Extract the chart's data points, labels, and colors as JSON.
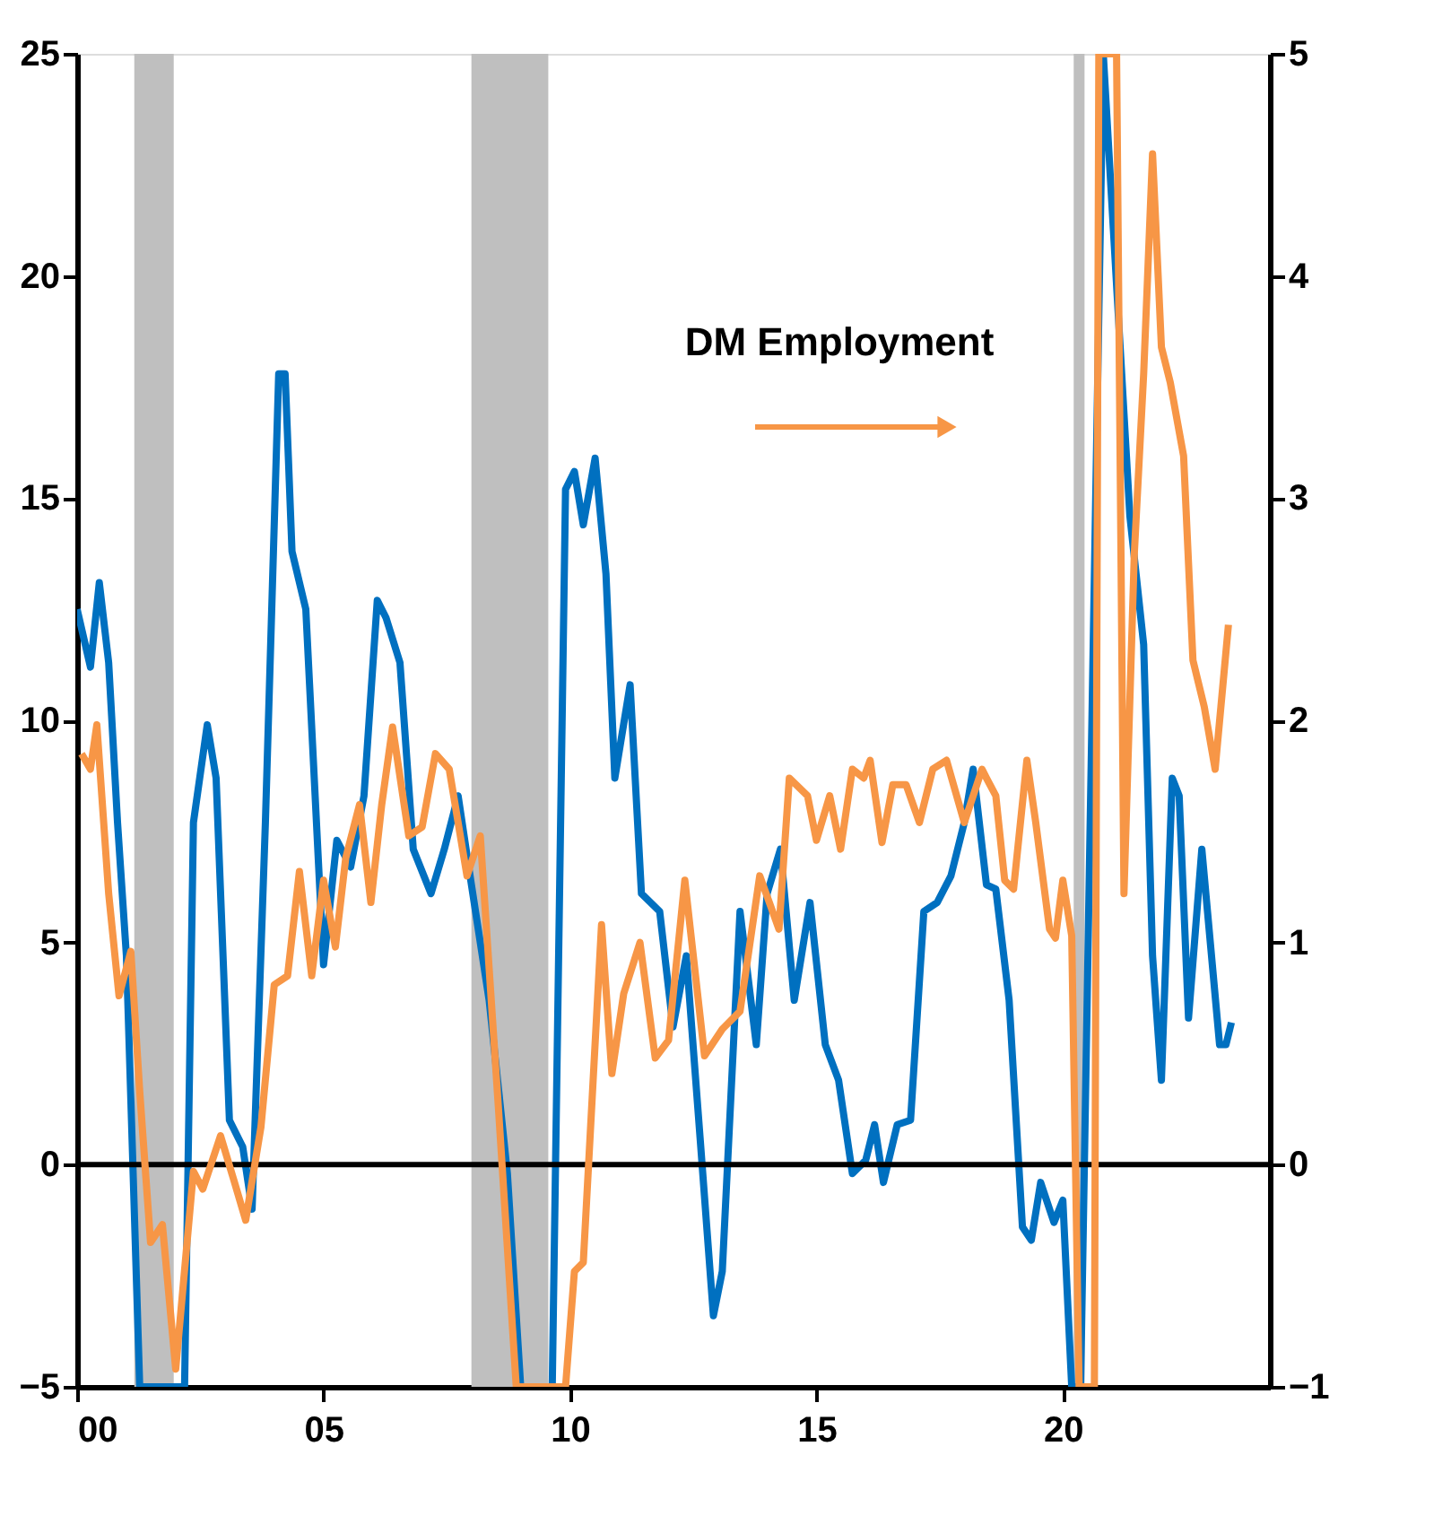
{
  "chart_data": {
    "type": "line",
    "xlim": [
      0,
      24.2
    ],
    "xticks": [
      {
        "value": 0,
        "label": "00"
      },
      {
        "value": 5,
        "label": "05"
      },
      {
        "value": 10,
        "label": "10"
      },
      {
        "value": 15,
        "label": "15"
      },
      {
        "value": 20,
        "label": "20"
      }
    ],
    "ylim": [
      -5,
      25
    ],
    "yticks": [
      -5,
      0,
      5,
      10,
      15,
      20,
      25
    ],
    "y2lim": [
      -1,
      5
    ],
    "y2ticks": [
      -1,
      0,
      1,
      2,
      3,
      4,
      5
    ],
    "grid": false,
    "legend": false,
    "marker": "none",
    "line_style": "solid",
    "ref_lines": [
      {
        "axis": "y",
        "value": 0,
        "color": "#000000"
      }
    ],
    "bands": [
      {
        "axis": "x",
        "from": 1.16,
        "to": 1.96,
        "color": "#bfbfbf"
      },
      {
        "axis": "x",
        "from": 8.0,
        "to": 9.56,
        "color": "#bfbfbf"
      },
      {
        "axis": "x",
        "from": 20.22,
        "to": 20.44,
        "color": "#bfbfbf"
      }
    ],
    "series": [
      {
        "color": "#0070c0",
        "x": [
          0.0,
          0.27,
          0.45,
          0.64,
          0.82,
          1.0,
          1.27,
          2.18,
          2.36,
          2.64,
          2.82,
          3.09,
          3.36,
          3.55,
          3.82,
          4.09,
          4.22,
          4.36,
          4.64,
          5.0,
          5.27,
          5.55,
          5.82,
          6.09,
          6.27,
          6.55,
          6.82,
          7.18,
          7.45,
          7.73,
          8.0,
          8.36,
          8.73,
          9.0,
          9.64,
          9.91,
          10.09,
          10.27,
          10.51,
          10.73,
          10.91,
          11.22,
          11.45,
          11.82,
          12.09,
          12.36,
          12.64,
          12.91,
          13.09,
          13.45,
          13.78,
          14.0,
          14.27,
          14.55,
          14.87,
          15.18,
          15.45,
          15.73,
          16.0,
          16.18,
          16.36,
          16.64,
          16.91,
          17.18,
          17.45,
          17.73,
          18.0,
          18.18,
          18.45,
          18.64,
          18.91,
          19.18,
          19.36,
          19.55,
          19.82,
          20.0,
          20.18,
          20.36,
          20.82,
          21.36,
          21.64,
          21.82,
          22.0,
          22.22,
          22.36,
          22.55,
          22.82,
          23.0,
          23.18,
          23.31,
          23.42
        ],
        "values": [
          12.5,
          11.2,
          13.1,
          11.3,
          7.7,
          4.7,
          -5,
          -5,
          7.7,
          9.9,
          8.7,
          1.0,
          0.4,
          -1.0,
          7.7,
          17.8,
          17.8,
          13.8,
          12.5,
          4.5,
          7.3,
          6.7,
          8.3,
          12.7,
          12.3,
          11.3,
          7.1,
          6.1,
          7.1,
          8.3,
          6.3,
          3.7,
          -0.2,
          -5,
          -5,
          15.2,
          15.6,
          14.4,
          15.9,
          13.3,
          8.7,
          10.8,
          6.1,
          5.7,
          3.1,
          4.7,
          0.6,
          -3.4,
          -2.4,
          5.7,
          2.7,
          6.1,
          7.1,
          3.7,
          5.9,
          2.7,
          1.9,
          -0.2,
          0.1,
          0.9,
          -0.4,
          0.9,
          1.0,
          5.7,
          5.9,
          6.5,
          7.7,
          8.9,
          6.3,
          6.2,
          3.7,
          -1.4,
          -1.7,
          -0.4,
          -1.3,
          -0.8,
          -5,
          -5,
          25,
          14.6,
          11.7,
          4.7,
          1.9,
          8.7,
          8.3,
          3.3,
          7.1,
          4.9,
          2.7,
          2.7,
          3.2
        ]
      },
      {
        "name": "DM Employment",
        "color": "#f79646",
        "axis": "y2",
        "x": [
          0.09,
          0.27,
          0.4,
          0.64,
          0.85,
          1.09,
          1.27,
          1.49,
          1.73,
          2.0,
          2.36,
          2.55,
          2.91,
          3.18,
          3.42,
          3.73,
          4.0,
          4.27,
          4.51,
          4.76,
          5.0,
          5.24,
          5.45,
          5.73,
          5.96,
          6.18,
          6.4,
          6.73,
          7.0,
          7.27,
          7.55,
          7.91,
          8.18,
          8.55,
          8.91,
          9.91,
          10.09,
          10.27,
          10.64,
          10.85,
          11.09,
          11.42,
          11.73,
          12.0,
          12.33,
          12.73,
          13.09,
          13.45,
          13.85,
          14.24,
          14.45,
          14.82,
          15.0,
          15.27,
          15.49,
          15.73,
          15.96,
          16.09,
          16.33,
          16.55,
          16.82,
          17.09,
          17.36,
          17.64,
          18.0,
          18.36,
          18.45,
          18.64,
          18.82,
          19.0,
          19.27,
          19.45,
          19.73,
          19.85,
          20.0,
          20.18,
          20.33,
          20.64,
          20.73,
          21.09,
          21.24,
          21.45,
          21.64,
          21.82,
          22.0,
          22.18,
          22.45,
          22.64,
          22.87,
          23.09,
          23.36
        ],
        "values": [
          1.85,
          1.78,
          1.98,
          1.22,
          0.76,
          0.96,
          0.33,
          -0.35,
          -0.27,
          -0.92,
          -0.03,
          -0.11,
          0.13,
          -0.07,
          -0.25,
          0.17,
          0.81,
          0.85,
          1.32,
          0.85,
          1.28,
          0.98,
          1.38,
          1.62,
          1.18,
          1.62,
          1.97,
          1.48,
          1.52,
          1.85,
          1.78,
          1.3,
          1.48,
          0.25,
          -1,
          -1,
          -0.48,
          -0.44,
          1.08,
          0.41,
          0.77,
          1.0,
          0.48,
          0.56,
          1.28,
          0.49,
          0.61,
          0.69,
          1.3,
          1.06,
          1.74,
          1.66,
          1.46,
          1.66,
          1.42,
          1.78,
          1.74,
          1.82,
          1.45,
          1.71,
          1.71,
          1.54,
          1.78,
          1.82,
          1.54,
          1.78,
          1.74,
          1.66,
          1.28,
          1.24,
          1.82,
          1.54,
          1.06,
          1.02,
          1.28,
          1.03,
          -1,
          -1,
          5,
          5,
          1.22,
          2.75,
          3.56,
          4.55,
          3.68,
          3.52,
          3.19,
          2.27,
          2.06,
          1.78,
          2.43
        ]
      }
    ]
  }
}
